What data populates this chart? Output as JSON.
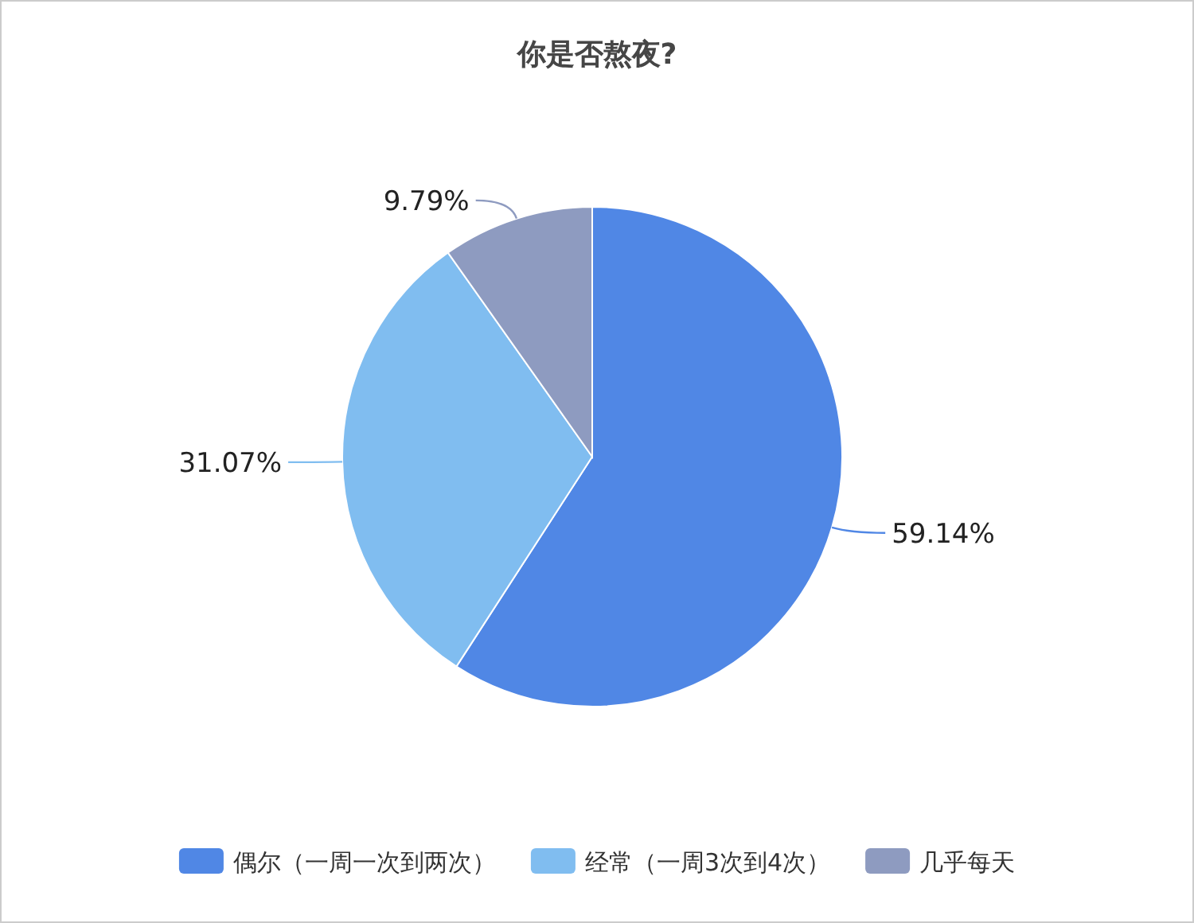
{
  "chart_data": {
    "type": "pie",
    "title": "你是否熬夜?",
    "categories": [
      "偶尔（一周一次到两次）",
      "经常（一周3次到4次）",
      "几乎每天"
    ],
    "values": [
      59.14,
      31.07,
      9.79
    ],
    "colors": [
      "#5087e5",
      "#80bdf0",
      "#8e9bc0"
    ],
    "value_labels": [
      "59.14%",
      "31.07%",
      "9.79%"
    ],
    "legend": "bottom"
  }
}
